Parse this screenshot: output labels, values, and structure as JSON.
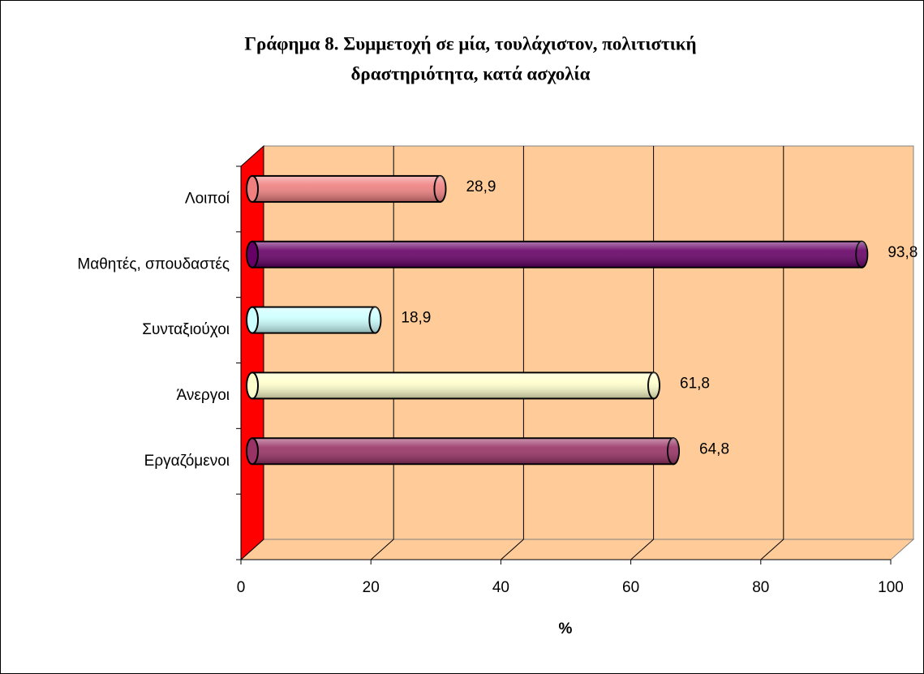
{
  "chart_data": {
    "type": "bar3d_horizontal",
    "title_lines": [
      "Γράφημα 8. Συμμετοχή σε  μία, τουλάχιστον, πολιτιστική",
      "δραστηριότητα, κατά ασχολία"
    ],
    "xlabel": "%",
    "categories": [
      "Λοιποί",
      "Μαθητές, σπουδαστές",
      "Συνταξιούχοι",
      "Άνεργοι",
      "Εργαζόμενοι",
      null
    ],
    "values": [
      28.9,
      93.8,
      18.9,
      61.8,
      64.8,
      null
    ],
    "value_labels": [
      "28,9",
      "93,8",
      "18,9",
      "61,8",
      "64,8",
      null
    ],
    "colors": [
      "#f08080",
      "#660066",
      "#ccffff",
      "#ffffcc",
      "#993366",
      null
    ],
    "xlim": [
      0,
      100
    ],
    "xticks": [
      0,
      20,
      40,
      60,
      80,
      100
    ],
    "grid": true,
    "wall_color": "#ffcc99",
    "side_wall_color": "#ff0000"
  }
}
